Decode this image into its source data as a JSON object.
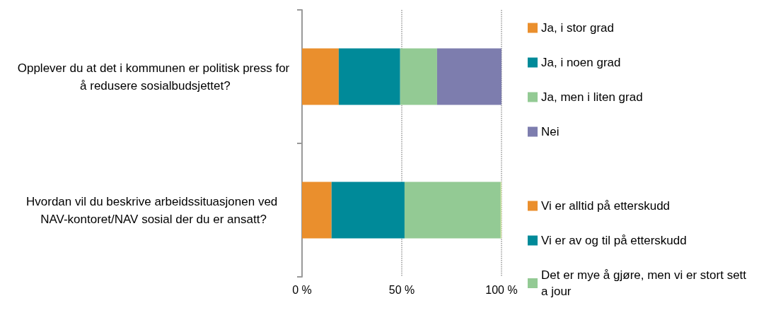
{
  "chart_data": {
    "type": "bar",
    "orientation": "horizontal",
    "stacked": true,
    "categories": [
      "Opplever du at det i kommunen er politisk press for å redusere sosialbudsjettet?",
      "Hvordan vil du beskrive arbeidssituasjonen ved NAV-kontoret/NAV sosial der du er ansatt?"
    ],
    "series": [
      {
        "name": "Ja, i stor grad",
        "color": "#ea8f2d",
        "values": [
          18.4,
          null
        ]
      },
      {
        "name": "Ja, i noen grad",
        "color": "#008a99",
        "values": [
          30.8,
          null
        ]
      },
      {
        "name": "Ja, men i liten grad",
        "color": "#93ca94",
        "values": [
          18.5,
          null
        ]
      },
      {
        "name": "Nei",
        "color": "#7d7dae",
        "values": [
          32.3,
          null
        ]
      },
      {
        "name": "Vi er alltid på etterskudd",
        "color": "#ea8f2d",
        "values": [
          null,
          14.8
        ]
      },
      {
        "name": "Vi er av og til på etterskudd",
        "color": "#008a99",
        "values": [
          null,
          36.6
        ]
      },
      {
        "name": "Det er mye å gjøre, men vi er stort sett a jour",
        "color": "#93ca94",
        "values": [
          null,
          48.2
        ]
      },
      {
        "color": "#d7e8a0",
        "values": [
          null,
          0.4
        ]
      }
    ],
    "xlim": [
      0,
      100
    ],
    "xticks": [
      {
        "value": 0,
        "label": "0 %"
      },
      {
        "value": 50,
        "label": "50 %"
      },
      {
        "value": 100,
        "label": "100 %"
      }
    ],
    "grid": "x",
    "legend": "right"
  }
}
